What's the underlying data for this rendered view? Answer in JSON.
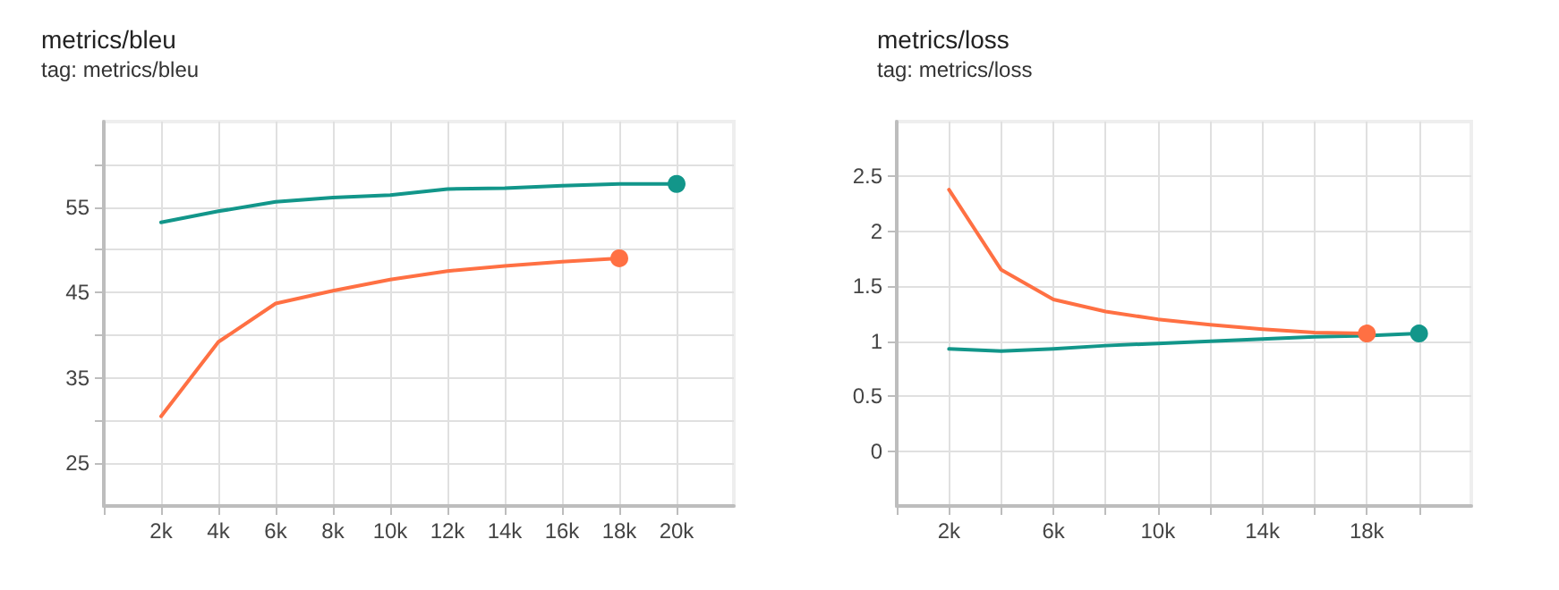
{
  "chart_data": [
    {
      "type": "line",
      "title": "metrics/bleu",
      "subtitle": "tag: metrics/bleu",
      "x": [
        2000,
        4000,
        6000,
        8000,
        10000,
        12000,
        14000,
        16000,
        18000,
        20000
      ],
      "series": [
        {
          "color": "#12968a",
          "values": [
            53.2,
            54.5,
            55.6,
            56.1,
            56.4,
            57.1,
            57.2,
            57.5,
            57.7,
            57.7
          ]
        },
        {
          "color": "#ff7043",
          "values": [
            30.5,
            39.2,
            43.7,
            45.2,
            46.5,
            47.5,
            48.1,
            48.6,
            49.0,
            null
          ]
        }
      ],
      "xlim": [
        0,
        22000
      ],
      "xticks": [
        {
          "value": 0,
          "label": null
        },
        {
          "value": 2000,
          "label": "2k"
        },
        {
          "value": 4000,
          "label": "4k"
        },
        {
          "value": 6000,
          "label": "6k"
        },
        {
          "value": 8000,
          "label": "8k"
        },
        {
          "value": 10000,
          "label": "10k"
        },
        {
          "value": 12000,
          "label": "12k"
        },
        {
          "value": 14000,
          "label": "14k"
        },
        {
          "value": 16000,
          "label": "16k"
        },
        {
          "value": 18000,
          "label": "18k"
        },
        {
          "value": 20000,
          "label": "20k"
        }
      ],
      "ylim": [
        20,
        65
      ],
      "yticks": [
        25,
        {
          "value": 30,
          "label": null
        },
        35,
        {
          "value": 40,
          "label": null
        },
        45,
        {
          "value": 50,
          "label": null
        },
        55,
        {
          "value": 60,
          "label": null
        }
      ],
      "grid": true
    },
    {
      "type": "line",
      "title": "metrics/loss",
      "subtitle": "tag: metrics/loss",
      "x": [
        2000,
        4000,
        6000,
        8000,
        10000,
        12000,
        14000,
        16000,
        18000,
        20000
      ],
      "series": [
        {
          "color": "#12968a",
          "values": [
            0.93,
            0.91,
            0.93,
            0.96,
            0.98,
            1.0,
            1.02,
            1.04,
            1.05,
            1.07
          ]
        },
        {
          "color": "#ff7043",
          "values": [
            2.38,
            1.65,
            1.38,
            1.27,
            1.2,
            1.15,
            1.11,
            1.08,
            1.07,
            null
          ]
        }
      ],
      "xlim": [
        0,
        22000
      ],
      "xticks": [
        {
          "value": 0,
          "label": null
        },
        {
          "value": 2000,
          "label": "2k"
        },
        {
          "value": 4000,
          "label": null
        },
        {
          "value": 6000,
          "label": "6k"
        },
        {
          "value": 8000,
          "label": null
        },
        {
          "value": 10000,
          "label": "10k"
        },
        {
          "value": 12000,
          "label": null
        },
        {
          "value": 14000,
          "label": "14k"
        },
        {
          "value": 16000,
          "label": null
        },
        {
          "value": 18000,
          "label": "18k"
        },
        {
          "value": 20000,
          "label": null
        }
      ],
      "ylim": [
        -0.5,
        3
      ],
      "yticks": [
        0,
        0.5,
        1,
        1.5,
        2,
        2.5
      ],
      "grid": true
    }
  ]
}
